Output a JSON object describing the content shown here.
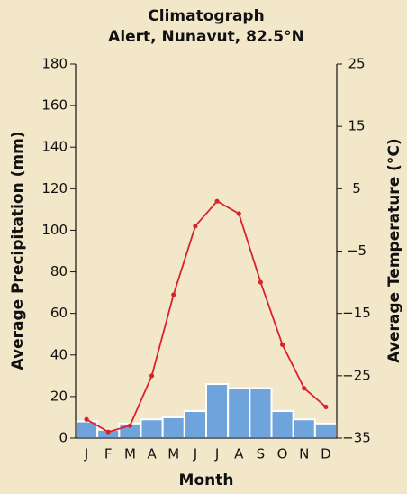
{
  "chart_data": {
    "type": "bar",
    "title": "Climatograph",
    "subtitle": "Alert, Nunavut, 82.5°N",
    "xlabel": "Month",
    "ylabel": "Average Precipitation (mm)",
    "y2label": "Average Temperature (°C)",
    "categories": [
      "J",
      "F",
      "M",
      "A",
      "M",
      "J",
      "J",
      "A",
      "S",
      "O",
      "N",
      "D"
    ],
    "series": [
      {
        "type": "bar",
        "color": "#6fa3dc",
        "values": [
          8,
          4,
          7,
          9,
          10,
          13,
          26,
          24,
          24,
          13,
          9,
          7
        ]
      },
      {
        "type": "line",
        "axis": "y2",
        "color": "#d9232a",
        "values": [
          -32,
          -34,
          -33,
          -25,
          -12,
          -1,
          3,
          1,
          -10,
          -20,
          -27,
          -30
        ]
      }
    ],
    "ylim": [
      0,
      180
    ],
    "yticks": [
      0,
      20,
      40,
      60,
      80,
      100,
      120,
      140,
      160,
      180
    ],
    "y2lim": [
      -35,
      25
    ],
    "y2ticks": [
      {
        "value": -35,
        "label": "−35"
      },
      {
        "value": -25,
        "label": "−25"
      },
      {
        "value": -15,
        "label": "−15"
      },
      {
        "value": -5,
        "label": "−5"
      },
      5,
      15,
      25
    ]
  }
}
